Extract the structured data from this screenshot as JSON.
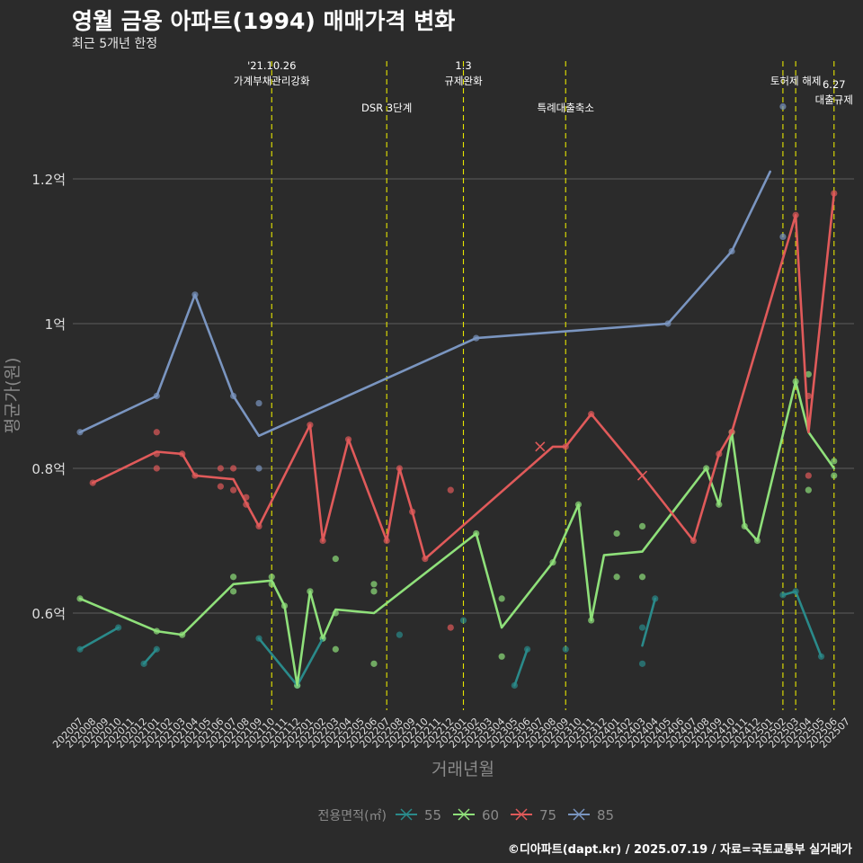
{
  "header": {
    "title": "영월 금용 아파트(1994) 매매가격 변화",
    "subtitle": "최근 5개년 한정"
  },
  "caption": "©디아파트(dapt.kr) / 2025.07.19 / 자료=국토교통부 실거래가",
  "colors": {
    "background": "#2b2b2b",
    "grid": "#5e5e5e",
    "event_line": "#e6e600",
    "axis_text": "#dddddd",
    "axis_title": "#8a8a8a"
  },
  "chart_data": {
    "type": "line",
    "xlabel": "거래년월",
    "ylabel": "평균가(원)",
    "ylim": [
      0.45,
      1.37
    ],
    "y_ticks": [
      {
        "value": 0.6,
        "label": "0.6억"
      },
      {
        "value": 0.8,
        "label": "0.8억"
      },
      {
        "value": 1.0,
        "label": "1억"
      },
      {
        "value": 1.2,
        "label": "1.2억"
      }
    ],
    "x_start": "202007",
    "months": [
      "202007",
      "202008",
      "202009",
      "202010",
      "202011",
      "202012",
      "202101",
      "202102",
      "202103",
      "202104",
      "202105",
      "202106",
      "202107",
      "202108",
      "202109",
      "202110",
      "202111",
      "202112",
      "202201",
      "202202",
      "202203",
      "202204",
      "202205",
      "202206",
      "202207",
      "202208",
      "202209",
      "202210",
      "202211",
      "202212",
      "202301",
      "202302",
      "202303",
      "202304",
      "202305",
      "202306",
      "202307",
      "202308",
      "202309",
      "202310",
      "202311",
      "202312",
      "202401",
      "202402",
      "202403",
      "202404",
      "202405",
      "202406",
      "202407",
      "202408",
      "202409",
      "202410",
      "202411",
      "202412",
      "202501",
      "202502",
      "202503",
      "202504",
      "202505",
      "202506",
      "202507"
    ],
    "events": [
      {
        "month": "202110",
        "label": "'21.10.26\n가계부채관리강화",
        "level": 1
      },
      {
        "month": "202207",
        "label": "DSR 3단계",
        "level": 2
      },
      {
        "month": "202301",
        "label": "1.3\n규제완화",
        "level": 1
      },
      {
        "month": "202309",
        "label": "특례대출축소",
        "level": 2
      },
      {
        "month": "202502",
        "label": "",
        "level": 1
      },
      {
        "month": "202503",
        "label": "토허제 해제",
        "level": 1
      },
      {
        "month": "202506",
        "label": "6.27\n대출규제",
        "level": 3
      }
    ],
    "legend": {
      "title": "전용면적(㎡)",
      "position": "bottom",
      "items": [
        {
          "name": "55",
          "color": "#2a8a8a"
        },
        {
          "name": "60",
          "color": "#8fe07a"
        },
        {
          "name": "75",
          "color": "#e05a5a"
        },
        {
          "name": "85",
          "color": "#7a95c0"
        }
      ]
    },
    "series": [
      {
        "name": "55",
        "color": "#2a8a8a",
        "segments": [
          [
            [
              "202007",
              0.55
            ],
            [
              "202010",
              0.58
            ]
          ],
          [
            [
              "202012",
              0.53
            ],
            [
              "202101",
              0.55
            ]
          ],
          [
            [
              "202109",
              0.565
            ],
            [
              "202112",
              0.5
            ],
            [
              "202202",
              0.565
            ]
          ],
          [
            [
              "202305",
              0.5
            ],
            [
              "202306",
              0.55
            ]
          ],
          [
            [
              "202403",
              0.555
            ],
            [
              "202404",
              0.62
            ]
          ],
          [
            [
              "202502",
              0.625
            ],
            [
              "202503",
              0.63
            ],
            [
              "202505",
              0.54
            ]
          ]
        ],
        "points": [
          [
            "202007",
            0.55
          ],
          [
            "202010",
            0.58
          ],
          [
            "202012",
            0.53
          ],
          [
            "202101",
            0.55
          ],
          [
            "202109",
            0.565
          ],
          [
            "202112",
            0.5
          ],
          [
            "202202",
            0.565
          ],
          [
            "202208",
            0.57
          ],
          [
            "202301",
            0.59
          ],
          [
            "202305",
            0.5
          ],
          [
            "202306",
            0.55
          ],
          [
            "202309",
            0.55
          ],
          [
            "202403",
            0.58
          ],
          [
            "202403",
            0.53
          ],
          [
            "202404",
            0.62
          ],
          [
            "202502",
            0.625
          ],
          [
            "202503",
            0.63
          ],
          [
            "202505",
            0.54
          ]
        ],
        "crosses": []
      },
      {
        "name": "60",
        "color": "#8fe07a",
        "segments": [
          [
            [
              "202007",
              0.62
            ],
            [
              "202101",
              0.575
            ],
            [
              "202103",
              0.57
            ],
            [
              "202107",
              0.64
            ],
            [
              "202110",
              0.645
            ],
            [
              "202111",
              0.61
            ],
            [
              "202112",
              0.5
            ],
            [
              "202201",
              0.63
            ],
            [
              "202202",
              0.565
            ],
            [
              "202203",
              0.605
            ],
            [
              "202206",
              0.6
            ],
            [
              "202302",
              0.71
            ],
            [
              "202304",
              0.58
            ],
            [
              "202308",
              0.67
            ],
            [
              "202310",
              0.75
            ],
            [
              "202311",
              0.59
            ],
            [
              "202312",
              0.68
            ],
            [
              "202403",
              0.685
            ],
            [
              "202408",
              0.8
            ],
            [
              "202409",
              0.75
            ],
            [
              "202410",
              0.85
            ],
            [
              "202411",
              0.72
            ],
            [
              "202412",
              0.7
            ],
            [
              "202503",
              0.92
            ],
            [
              "202504",
              0.85
            ],
            [
              "202506",
              0.8
            ]
          ]
        ],
        "points": [
          [
            "202007",
            0.62
          ],
          [
            "202101",
            0.575
          ],
          [
            "202103",
            0.57
          ],
          [
            "202107",
            0.65
          ],
          [
            "202107",
            0.63
          ],
          [
            "202110",
            0.65
          ],
          [
            "202110",
            0.64
          ],
          [
            "202111",
            0.61
          ],
          [
            "202112",
            0.5
          ],
          [
            "202201",
            0.63
          ],
          [
            "202202",
            0.565
          ],
          [
            "202203",
            0.6
          ],
          [
            "202203",
            0.675
          ],
          [
            "202203",
            0.55
          ],
          [
            "202206",
            0.64
          ],
          [
            "202206",
            0.63
          ],
          [
            "202206",
            0.53
          ],
          [
            "202302",
            0.71
          ],
          [
            "202304",
            0.62
          ],
          [
            "202304",
            0.54
          ],
          [
            "202308",
            0.67
          ],
          [
            "202310",
            0.75
          ],
          [
            "202311",
            0.59
          ],
          [
            "202401",
            0.71
          ],
          [
            "202401",
            0.65
          ],
          [
            "202403",
            0.72
          ],
          [
            "202403",
            0.65
          ],
          [
            "202408",
            0.8
          ],
          [
            "202409",
            0.75
          ],
          [
            "202410",
            0.85
          ],
          [
            "202411",
            0.72
          ],
          [
            "202412",
            0.7
          ],
          [
            "202503",
            0.92
          ],
          [
            "202504",
            0.93
          ],
          [
            "202504",
            0.77
          ],
          [
            "202506",
            0.81
          ],
          [
            "202506",
            0.79
          ]
        ],
        "crosses": []
      },
      {
        "name": "75",
        "color": "#e05a5a",
        "segments": [
          [
            [
              "202008",
              0.78
            ],
            [
              "202101",
              0.823
            ],
            [
              "202103",
              0.82
            ],
            [
              "202104",
              0.79
            ],
            [
              "202107",
              0.785
            ],
            [
              "202109",
              0.72
            ],
            [
              "202201",
              0.86
            ],
            [
              "202202",
              0.7
            ],
            [
              "202204",
              0.84
            ],
            [
              "202207",
              0.7
            ],
            [
              "202208",
              0.8
            ],
            [
              "202209",
              0.74
            ],
            [
              "202210",
              0.675
            ],
            [
              "202308",
              0.83
            ],
            [
              "202309",
              0.83
            ],
            [
              "202311",
              0.875
            ],
            [
              "202403",
              0.79
            ],
            [
              "202407",
              0.7
            ],
            [
              "202409",
              0.82
            ],
            [
              "202410",
              0.85
            ],
            [
              "202503",
              1.15
            ],
            [
              "202504",
              0.85
            ],
            [
              "202506",
              1.18
            ]
          ]
        ],
        "points": [
          [
            "202008",
            0.78
          ],
          [
            "202101",
            0.85
          ],
          [
            "202101",
            0.82
          ],
          [
            "202101",
            0.8
          ],
          [
            "202103",
            0.82
          ],
          [
            "202104",
            0.79
          ],
          [
            "202106",
            0.8
          ],
          [
            "202106",
            0.775
          ],
          [
            "202107",
            0.8
          ],
          [
            "202107",
            0.77
          ],
          [
            "202108",
            0.76
          ],
          [
            "202108",
            0.75
          ],
          [
            "202109",
            0.72
          ],
          [
            "202201",
            0.86
          ],
          [
            "202202",
            0.7
          ],
          [
            "202204",
            0.84
          ],
          [
            "202207",
            0.7
          ],
          [
            "202208",
            0.8
          ],
          [
            "202209",
            0.74
          ],
          [
            "202210",
            0.675
          ],
          [
            "202212",
            0.58
          ],
          [
            "202212",
            0.77
          ],
          [
            "202309",
            0.83
          ],
          [
            "202311",
            0.875
          ],
          [
            "202407",
            0.7
          ],
          [
            "202409",
            0.82
          ],
          [
            "202410",
            0.85
          ],
          [
            "202503",
            1.15
          ],
          [
            "202504",
            0.9
          ],
          [
            "202504",
            0.79
          ],
          [
            "202506",
            1.18
          ]
        ],
        "crosses": [
          [
            "202307",
            0.83
          ],
          [
            "202403",
            0.79
          ]
        ]
      },
      {
        "name": "85",
        "color": "#7a95c0",
        "segments": [
          [
            [
              "202007",
              0.85
            ],
            [
              "202101",
              0.9
            ],
            [
              "202104",
              1.04
            ],
            [
              "202107",
              0.9
            ],
            [
              "202109",
              0.845
            ],
            [
              "202302",
              0.98
            ],
            [
              "202405",
              1.0
            ],
            [
              "202410",
              1.1
            ],
            [
              "202501",
              1.21
            ]
          ]
        ],
        "points": [
          [
            "202007",
            0.85
          ],
          [
            "202101",
            0.9
          ],
          [
            "202104",
            1.04
          ],
          [
            "202107",
            0.9
          ],
          [
            "202109",
            0.89
          ],
          [
            "202109",
            0.8
          ],
          [
            "202302",
            0.98
          ],
          [
            "202405",
            1.0
          ],
          [
            "202410",
            1.1
          ],
          [
            "202502",
            1.12
          ],
          [
            "202502",
            1.3
          ]
        ],
        "crosses": []
      }
    ]
  }
}
